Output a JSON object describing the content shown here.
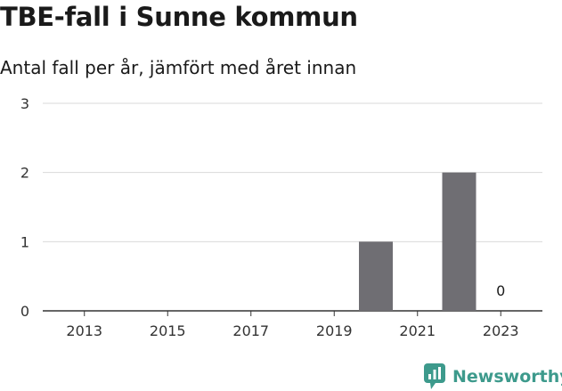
{
  "header": {
    "title": "TBE-fall i Sunne kommun",
    "subtitle": "Antal fall per år, jämfört med året innan"
  },
  "brand": {
    "name": "Newsworthy",
    "icon": "newsworthy-logo-icon",
    "color": "#3d9a8c"
  },
  "colors": {
    "bar": "#6f6e73",
    "grid": "#d9d9d9",
    "axis": "#333333",
    "text": "#333333"
  },
  "chart_data": {
    "type": "bar",
    "title": "TBE-fall i Sunne kommun",
    "subtitle": "Antal fall per år, jämfört med året innan",
    "xlabel": "",
    "ylabel": "",
    "x": [
      2020,
      2022,
      2023
    ],
    "values": [
      1,
      2,
      0
    ],
    "data_labels": [
      {
        "x": 2023,
        "text": "0"
      }
    ],
    "xlim": [
      2012,
      2024
    ],
    "ylim": [
      0,
      3
    ],
    "x_ticks": [
      "2013",
      "2015",
      "2017",
      "2019",
      "2021",
      "2023"
    ],
    "y_ticks": [
      "0",
      "1",
      "2",
      "3"
    ],
    "grid": "horizontal",
    "legend": "none"
  }
}
